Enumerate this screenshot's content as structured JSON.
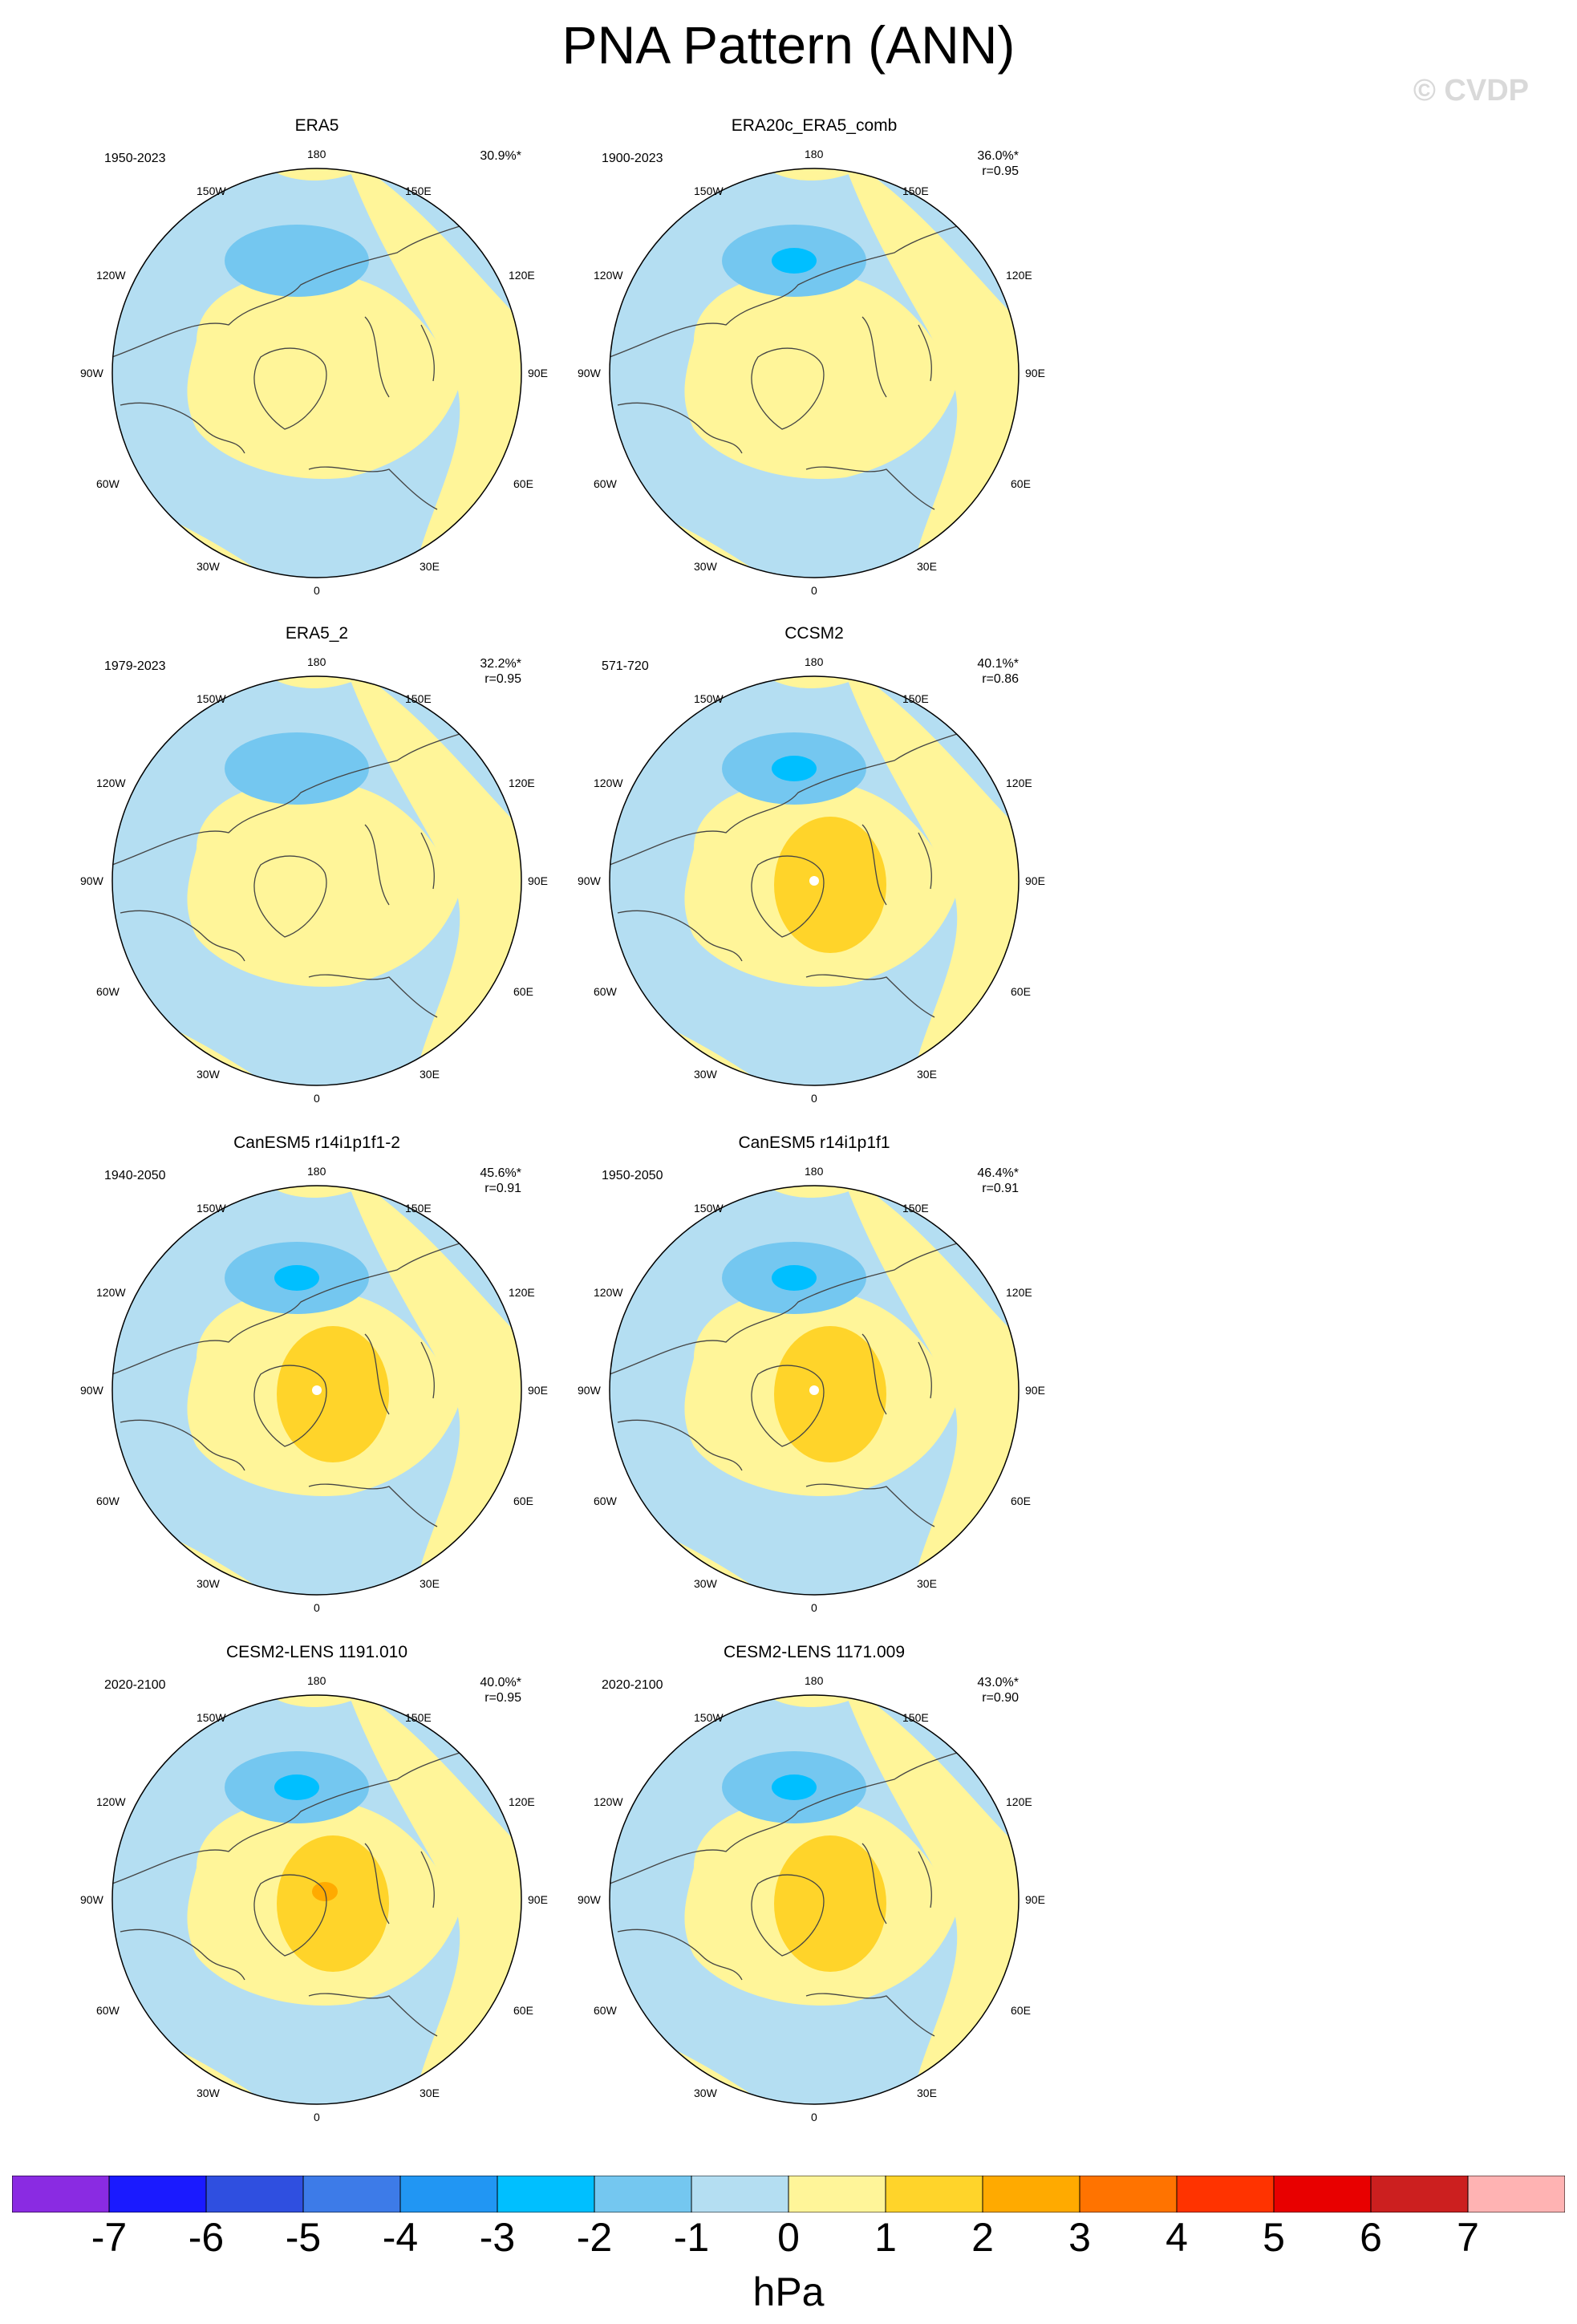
{
  "title": "PNA Pattern (ANN)",
  "watermark": "© CVDP",
  "map_labels": {
    "top": "180",
    "bottom": "0",
    "left": "90W",
    "right": "90E",
    "ul1": "150W",
    "ul2": "120W",
    "ur1": "150E",
    "ur2": "120E",
    "ll1": "60W",
    "ll2": "30W",
    "lr1": "60E",
    "lr2": "30E"
  },
  "panels": [
    {
      "title": "ERA5",
      "period": "1950-2023",
      "pct": "30.9%*",
      "r": "",
      "max_anom": 1,
      "min_anom": -2
    },
    {
      "title": "ERA20c_ERA5_comb",
      "period": "1900-2023",
      "pct": "36.0%*",
      "r": "r=0.95",
      "max_anom": 1,
      "min_anom": -3
    },
    {
      "title": "ERA5_2",
      "period": "1979-2023",
      "pct": "32.2%*",
      "r": "r=0.95",
      "max_anom": 1,
      "min_anom": -2
    },
    {
      "title": "CCSM2",
      "period": "571-720",
      "pct": "40.1%*",
      "r": "r=0.86",
      "max_anom": 2,
      "min_anom": -3
    },
    {
      "title": "CanESM5 r14i1p1f1-2",
      "period": "1940-2050",
      "pct": "45.6%*",
      "r": "r=0.91",
      "max_anom": 2,
      "min_anom": -3
    },
    {
      "title": "CanESM5 r14i1p1f1",
      "period": "1950-2050",
      "pct": "46.4%*",
      "r": "r=0.91",
      "max_anom": 2,
      "min_anom": -3
    },
    {
      "title": "CESM2-LENS 1191.010",
      "period": "2020-2100",
      "pct": "40.0%*",
      "r": "r=0.95",
      "max_anom": 3,
      "min_anom": -3
    },
    {
      "title": "CESM2-LENS 1171.009",
      "period": "2020-2100",
      "pct": "43.0%*",
      "r": "r=0.90",
      "max_anom": 2,
      "min_anom": -3
    }
  ],
  "colorbar": {
    "units": "hPa",
    "labels": [
      "-7",
      "-6",
      "-5",
      "-4",
      "-3",
      "-2",
      "-1",
      "0",
      "1",
      "2",
      "3",
      "4",
      "5",
      "6",
      "7"
    ],
    "colors": [
      "#8a2be2",
      "#1a1aff",
      "#2f4fe0",
      "#3d7be8",
      "#2196f3",
      "#00bfff",
      "#74c7f0",
      "#b4def2",
      "#fff599",
      "#ffd42a",
      "#ffaa00",
      "#ff7300",
      "#ff3300",
      "#e80000",
      "#cc1f1f",
      "#ffb3b3"
    ]
  },
  "colors": {
    "pos1": "#fff599",
    "pos2": "#ffd42a",
    "pos3": "#ffaa00",
    "neg1": "#b4def2",
    "neg2": "#74c7f0",
    "neg3": "#00bfff",
    "coast": "#444444"
  }
}
